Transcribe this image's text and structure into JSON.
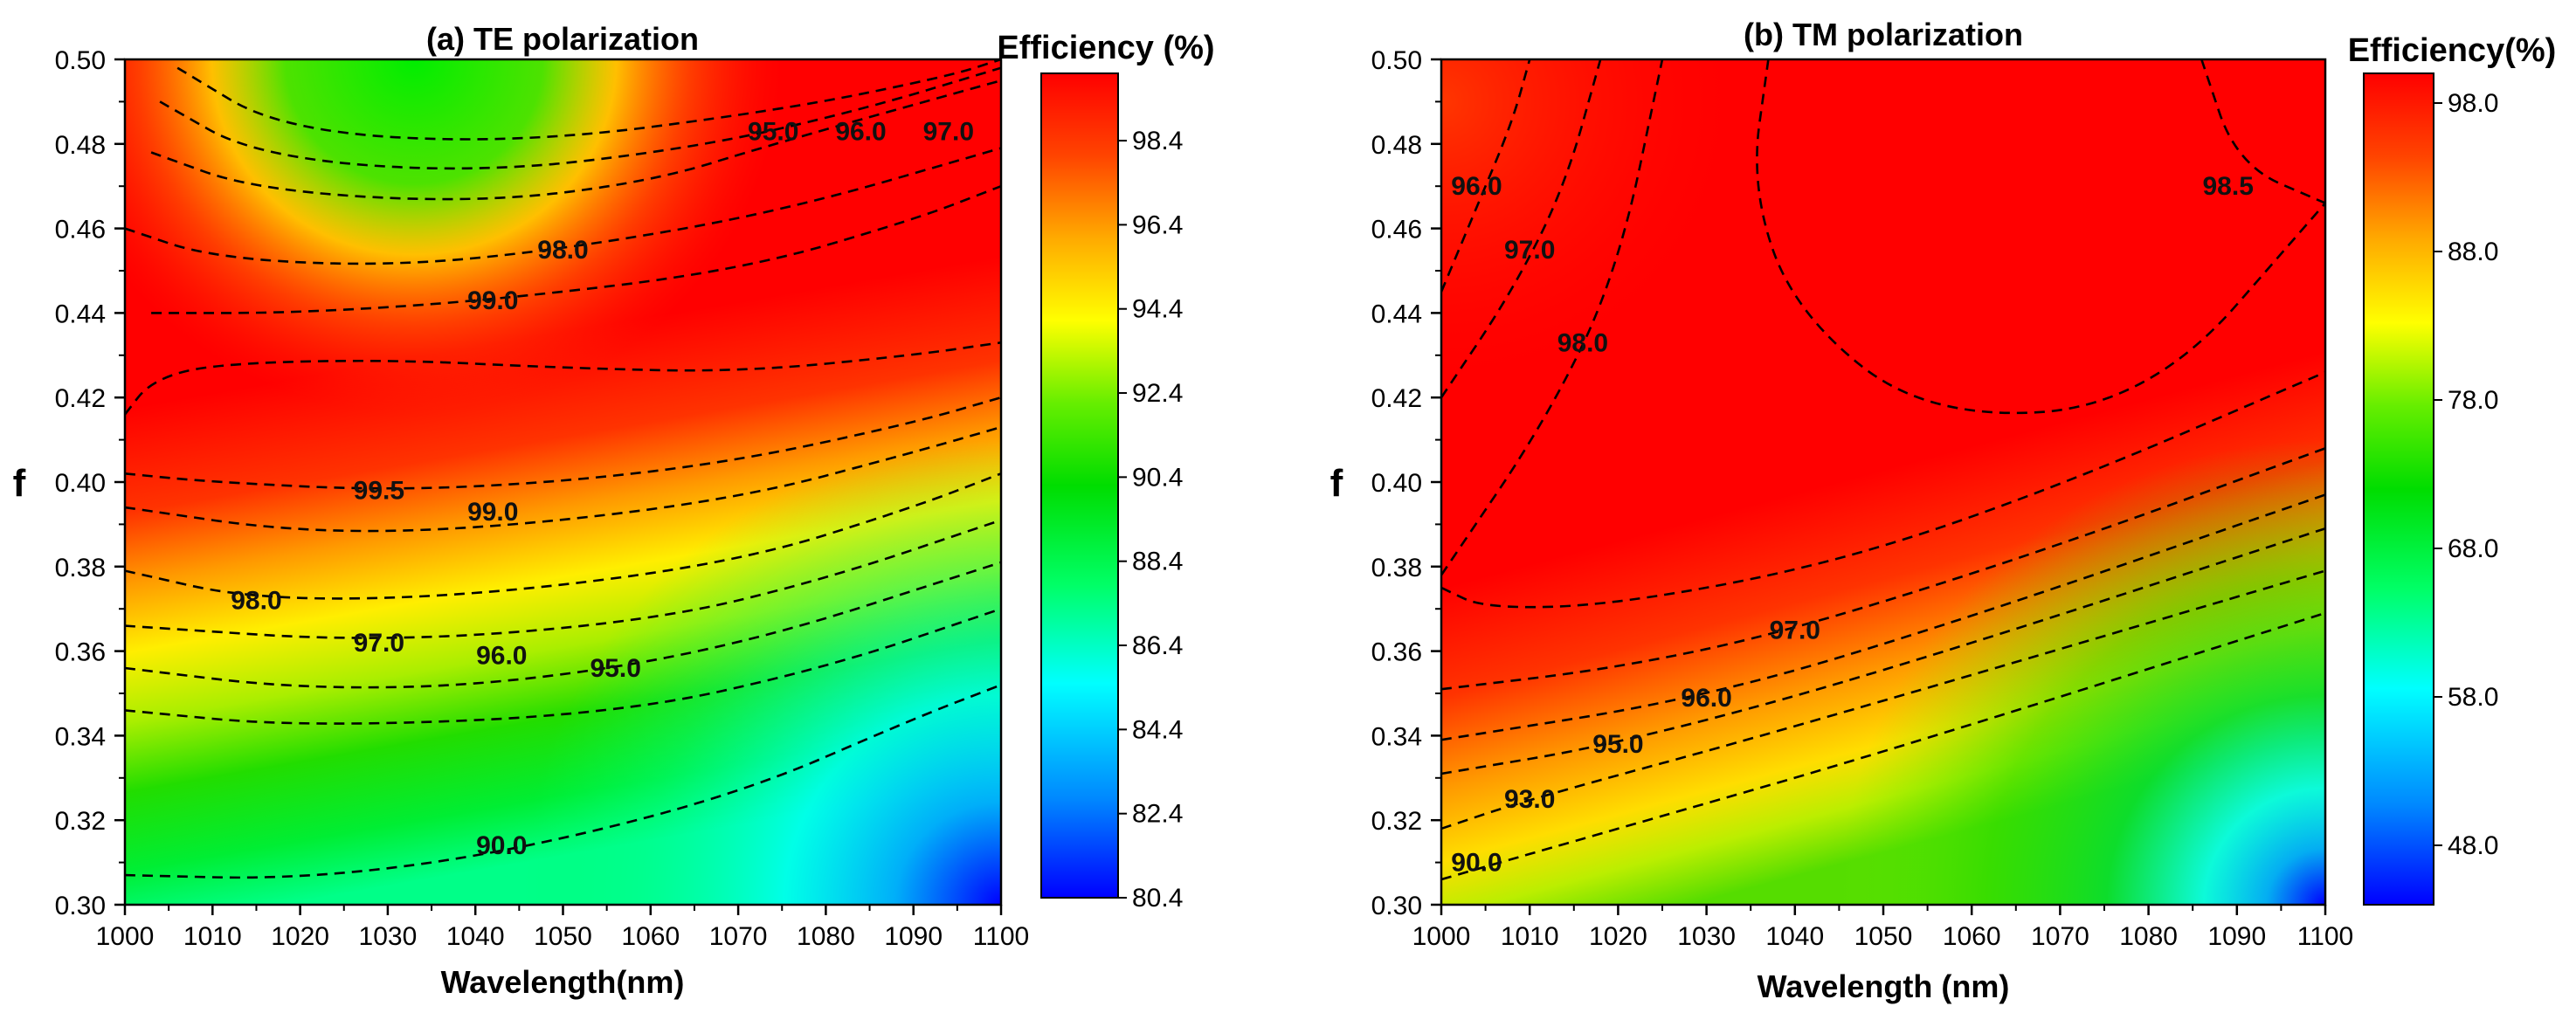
{
  "chart_data": [
    {
      "type": "heatmap",
      "title": "(a) TE polarization",
      "xlabel": "Wavelength(nm)",
      "ylabel": "f",
      "xlim": [
        1000,
        1100
      ],
      "ylim": [
        0.3,
        0.5
      ],
      "x_ticks": [
        "1000",
        "1010",
        "1020",
        "1030",
        "1040",
        "1050",
        "1060",
        "1070",
        "1080",
        "1090",
        "1100"
      ],
      "y_ticks": [
        "0.30",
        "0.32",
        "0.34",
        "0.36",
        "0.38",
        "0.40",
        "0.42",
        "0.44",
        "0.46",
        "0.48",
        "0.50"
      ],
      "colorbar": {
        "title": "Efficiency (%)",
        "range": [
          80.4,
          100.0
        ],
        "ticks": [
          "80.4",
          "82.4",
          "84.4",
          "86.4",
          "88.4",
          "90.4",
          "92.4",
          "94.4",
          "96.4",
          "98.4"
        ],
        "tick_values": [
          80.4,
          82.4,
          84.4,
          86.4,
          88.4,
          90.4,
          92.4,
          94.4,
          96.4,
          98.4
        ],
        "colors": [
          "#0000ff",
          "#00aaff",
          "#00ffff",
          "#00ff66",
          "#00dd00",
          "#66ee00",
          "#ffff00",
          "#ffaa00",
          "#ff4400",
          "#ff0000"
        ]
      },
      "grid": false,
      "contours": [
        {
          "label": "99.5",
          "label_x": 1029,
          "label_y": 0.398,
          "points": [
            [
              1000,
              0.416
            ],
            [
              1003,
              0.424
            ],
            [
              1010,
              0.428
            ],
            [
              1030,
              0.429
            ],
            [
              1050,
              0.427
            ],
            [
              1070,
              0.426
            ],
            [
              1090,
              0.43
            ],
            [
              1100,
              0.433
            ]
          ]
        },
        {
          "label": "99.5",
          "label_x": 1029,
          "label_y": 0.398,
          "points": [
            [
              1000,
              0.402
            ],
            [
              1010,
              0.4
            ],
            [
              1030,
              0.398
            ],
            [
              1050,
              0.4
            ],
            [
              1070,
              0.405
            ],
            [
              1090,
              0.414
            ],
            [
              1100,
              0.42
            ]
          ]
        },
        {
          "label": "99.0",
          "label_x": 1042,
          "label_y": 0.393,
          "points": [
            [
              1000,
              0.394
            ],
            [
              1020,
              0.388
            ],
            [
              1042,
              0.389
            ],
            [
              1070,
              0.396
            ],
            [
              1090,
              0.407
            ],
            [
              1100,
              0.413
            ]
          ]
        },
        {
          "label": "98.0",
          "label_x": 1015,
          "label_y": 0.372,
          "points": [
            [
              1000,
              0.379
            ],
            [
              1015,
              0.372
            ],
            [
              1040,
              0.373
            ],
            [
              1070,
              0.381
            ],
            [
              1090,
              0.394
            ],
            [
              1100,
              0.402
            ]
          ]
        },
        {
          "label": "97.0",
          "label_x": 1029,
          "label_y": 0.362,
          "points": [
            [
              1000,
              0.366
            ],
            [
              1029,
              0.362
            ],
            [
              1060,
              0.367
            ],
            [
              1080,
              0.377
            ],
            [
              1100,
              0.391
            ]
          ]
        },
        {
          "label": "96.0",
          "label_x": 1043,
          "label_y": 0.359,
          "points": [
            [
              1000,
              0.356
            ],
            [
              1020,
              0.351
            ],
            [
              1043,
              0.352
            ],
            [
              1070,
              0.361
            ],
            [
              1100,
              0.381
            ]
          ]
        },
        {
          "label": "95.0",
          "label_x": 1056,
          "label_y": 0.356,
          "points": [
            [
              1000,
              0.346
            ],
            [
              1020,
              0.342
            ],
            [
              1056,
              0.345
            ],
            [
              1080,
              0.356
            ],
            [
              1100,
              0.37
            ]
          ]
        },
        {
          "label": "90.0",
          "label_x": 1043,
          "label_y": 0.314,
          "points": [
            [
              1000,
              0.307
            ],
            [
              1020,
              0.306
            ],
            [
              1043,
              0.312
            ],
            [
              1070,
              0.326
            ],
            [
              1090,
              0.344
            ],
            [
              1100,
              0.352
            ]
          ]
        },
        {
          "label": "99.0",
          "label_x": 1042,
          "label_y": 0.443,
          "points": [
            [
              1003,
              0.44
            ],
            [
              1020,
              0.44
            ],
            [
              1042,
              0.443
            ],
            [
              1070,
              0.45
            ],
            [
              1090,
              0.462
            ],
            [
              1100,
              0.47
            ]
          ]
        },
        {
          "label": "98.0",
          "label_x": 1050,
          "label_y": 0.455,
          "points": [
            [
              1000,
              0.46
            ],
            [
              1010,
              0.453
            ],
            [
              1030,
              0.451
            ],
            [
              1050,
              0.455
            ],
            [
              1075,
              0.464
            ],
            [
              1100,
              0.479
            ]
          ]
        },
        {
          "label": "95.0",
          "label_x": 1074,
          "label_y": 0.483,
          "points": [
            [
              1003,
              0.478
            ],
            [
              1015,
              0.469
            ],
            [
              1040,
              0.466
            ],
            [
              1060,
              0.471
            ],
            [
              1074,
              0.48
            ],
            [
              1100,
              0.495
            ]
          ]
        },
        {
          "label": "96.0",
          "label_x": 1084,
          "label_y": 0.483,
          "points": [
            [
              1004,
              0.49
            ],
            [
              1015,
              0.477
            ],
            [
              1040,
              0.473
            ],
            [
              1065,
              0.479
            ],
            [
              1084,
              0.488
            ],
            [
              1100,
              0.498
            ]
          ]
        },
        {
          "label": "97.0",
          "label_x": 1094,
          "label_y": 0.483,
          "points": [
            [
              1006,
              0.498
            ],
            [
              1018,
              0.483
            ],
            [
              1045,
              0.48
            ],
            [
              1075,
              0.488
            ],
            [
              1094,
              0.496
            ],
            [
              1100,
              0.5
            ]
          ]
        }
      ],
      "contour_labels": [
        "99.5",
        "99.0",
        "98.0",
        "97.0",
        "96.0",
        "95.0",
        "90.0",
        "99.0",
        "98.0",
        "95.0",
        "96.0",
        "97.0"
      ]
    },
    {
      "type": "heatmap",
      "title": "(b) TM polarization",
      "xlabel": "Wavelength (nm)",
      "ylabel": "f",
      "xlim": [
        1000,
        1100
      ],
      "ylim": [
        0.3,
        0.5
      ],
      "x_ticks": [
        "1000",
        "1010",
        "1020",
        "1030",
        "1040",
        "1050",
        "1060",
        "1070",
        "1080",
        "1090",
        "1100"
      ],
      "y_ticks": [
        "0.30",
        "0.32",
        "0.34",
        "0.36",
        "0.38",
        "0.40",
        "0.42",
        "0.44",
        "0.46",
        "0.48",
        "0.50"
      ],
      "colorbar": {
        "title": "Efficiency(%)",
        "range": [
          44.0,
          100.0
        ],
        "ticks": [
          "48.0",
          "58.0",
          "68.0",
          "78.0",
          "88.0",
          "98.0"
        ],
        "tick_values": [
          48.0,
          58.0,
          68.0,
          78.0,
          88.0,
          98.0
        ],
        "colors": [
          "#0000ff",
          "#00aaff",
          "#00ffff",
          "#00ff66",
          "#00dd00",
          "#66ee00",
          "#ffff00",
          "#ffaa00",
          "#ff4400",
          "#ff0000"
        ]
      },
      "grid": false,
      "contours": [
        {
          "label": "96.0",
          "label_x": 1004,
          "label_y": 0.47,
          "points": [
            [
              1000,
              0.445
            ],
            [
              1004,
              0.465
            ],
            [
              1008,
              0.485
            ],
            [
              1010,
              0.5
            ]
          ]
        },
        {
          "label": "97.0",
          "label_x": 1010,
          "label_y": 0.455,
          "points": [
            [
              1000,
              0.42
            ],
            [
              1008,
              0.445
            ],
            [
              1014,
              0.47
            ],
            [
              1018,
              0.5
            ]
          ]
        },
        {
          "label": "98.0",
          "label_x": 1016,
          "label_y": 0.433,
          "points": [
            [
              1000,
              0.378
            ],
            [
              1012,
              0.415
            ],
            [
              1020,
              0.45
            ],
            [
              1025,
              0.5
            ]
          ]
        },
        {
          "label": "98.0",
          "label_x": 1016,
          "label_y": 0.433,
          "points": [
            [
              1000,
              0.375
            ],
            [
              1005,
              0.37
            ],
            [
              1020,
              0.371
            ],
            [
              1045,
              0.381
            ],
            [
              1070,
              0.399
            ],
            [
              1100,
              0.426
            ]
          ]
        },
        {
          "label": "98.5",
          "label_x": 1089,
          "label_y": 0.47,
          "points": [
            [
              1037,
              0.5
            ],
            [
              1035,
              0.47
            ],
            [
              1040,
              0.44
            ],
            [
              1055,
              0.415
            ],
            [
              1080,
              0.418
            ],
            [
              1100,
              0.466
            ]
          ]
        },
        {
          "label": "98.5",
          "label_x": 1089,
          "label_y": 0.47,
          "points": [
            [
              1086,
              0.5
            ],
            [
              1090,
              0.475
            ],
            [
              1100,
              0.466
            ]
          ]
        },
        {
          "label": "97.0",
          "label_x": 1040,
          "label_y": 0.365,
          "points": [
            [
              1000,
              0.351
            ],
            [
              1020,
              0.356
            ],
            [
              1040,
              0.365
            ],
            [
              1070,
              0.385
            ],
            [
              1100,
              0.408
            ]
          ]
        },
        {
          "label": "96.0",
          "label_x": 1030,
          "label_y": 0.349,
          "points": [
            [
              1000,
              0.339
            ],
            [
              1030,
              0.349
            ],
            [
              1060,
              0.368
            ],
            [
              1100,
              0.397
            ]
          ]
        },
        {
          "label": "95.0",
          "label_x": 1020,
          "label_y": 0.338,
          "points": [
            [
              1000,
              0.331
            ],
            [
              1020,
              0.338
            ],
            [
              1050,
              0.355
            ],
            [
              1100,
              0.389
            ]
          ]
        },
        {
          "label": "93.0",
          "label_x": 1010,
          "label_y": 0.325,
          "points": [
            [
              1000,
              0.318
            ],
            [
              1010,
              0.325
            ],
            [
              1040,
              0.342
            ],
            [
              1100,
              0.379
            ]
          ]
        },
        {
          "label": "90.0",
          "label_x": 1004,
          "label_y": 0.31,
          "points": [
            [
              1000,
              0.306
            ],
            [
              1020,
              0.318
            ],
            [
              1050,
              0.336
            ],
            [
              1100,
              0.369
            ]
          ]
        }
      ],
      "contour_labels": [
        "96.0",
        "97.0",
        "98.0",
        "98.5",
        "98.0",
        "97.0",
        "96.0",
        "95.0",
        "93.0",
        "90.0"
      ]
    }
  ]
}
